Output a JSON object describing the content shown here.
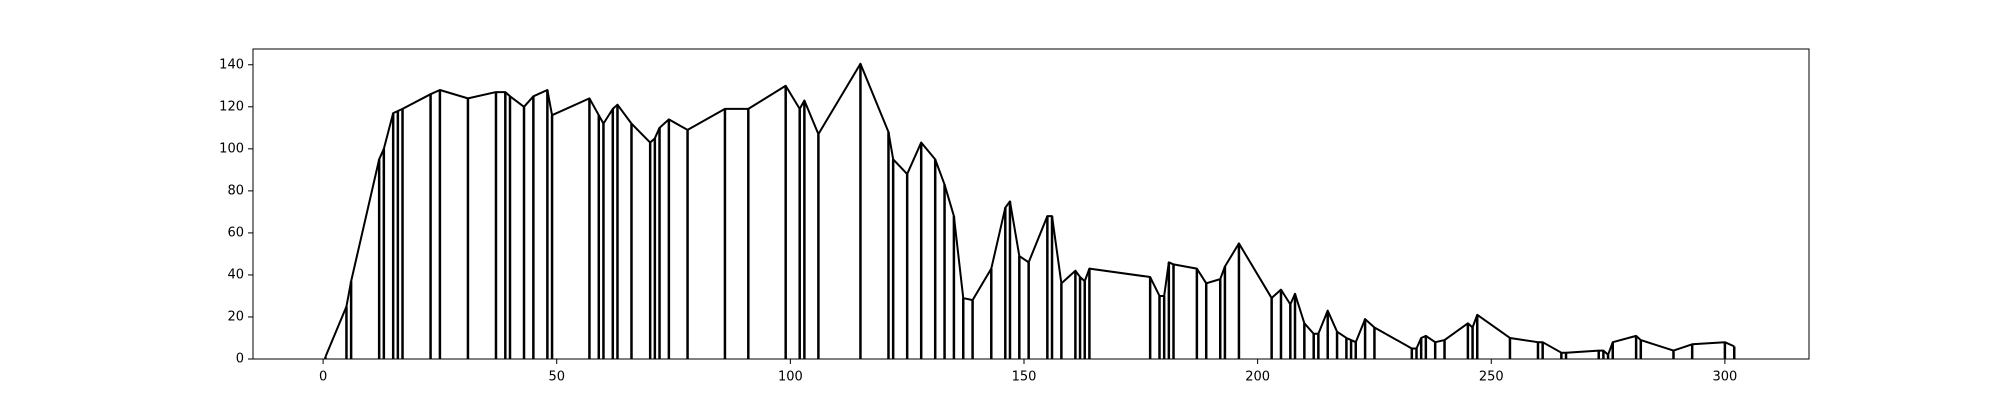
{
  "chart_data": {
    "type": "stem",
    "color": "#000000",
    "x": [
      0.5,
      5,
      6,
      12,
      13,
      15,
      16,
      17,
      23,
      25,
      31,
      37,
      39,
      40,
      43,
      45,
      48,
      49,
      57,
      59,
      60,
      62,
      63,
      66,
      70,
      71,
      72,
      74,
      78,
      86,
      91,
      99,
      102,
      103,
      106,
      115,
      121,
      122,
      125,
      128,
      131,
      133,
      135,
      137,
      139,
      143,
      146,
      147,
      149,
      151,
      155,
      156,
      158,
      161,
      162,
      163,
      164,
      177,
      179,
      180,
      181,
      182,
      187,
      189,
      192,
      193,
      196,
      203,
      205,
      207,
      208,
      210,
      212,
      213,
      215,
      217,
      219,
      220,
      221,
      223,
      225,
      233,
      234,
      235,
      236,
      238,
      240,
      245,
      246,
      247,
      254,
      260,
      261,
      265,
      266,
      273,
      274,
      275,
      276,
      281,
      282,
      289,
      293,
      300,
      302
    ],
    "values": [
      1,
      25,
      37,
      95,
      100,
      117,
      118,
      119,
      126,
      128,
      124,
      127,
      127,
      125,
      120,
      125,
      128,
      116,
      124,
      116,
      112,
      119,
      121,
      112,
      103,
      105,
      110,
      114,
      109,
      119,
      119,
      130,
      119,
      123,
      107,
      140.5,
      108,
      95,
      88,
      103,
      95,
      83,
      68,
      29,
      28,
      43,
      72,
      75,
      49,
      46,
      68,
      68,
      36,
      42,
      39,
      37,
      43,
      39,
      30,
      30,
      46,
      45,
      43,
      36,
      38,
      44,
      55,
      29,
      33,
      26,
      31,
      17,
      12,
      12,
      23,
      13,
      10,
      9,
      8,
      19,
      15,
      5,
      5,
      10,
      11,
      8,
      9,
      17,
      15,
      21,
      10,
      8,
      8,
      3,
      3,
      4,
      4,
      2,
      8,
      11,
      9,
      4,
      7,
      8,
      6
    ],
    "xlim": [
      -15,
      318
    ],
    "xticks": [
      0,
      50,
      100,
      150,
      200,
      250,
      300
    ],
    "ylim": [
      0,
      147.5
    ],
    "yticks": [
      0,
      20,
      40,
      60,
      80,
      100,
      120,
      140
    ]
  }
}
